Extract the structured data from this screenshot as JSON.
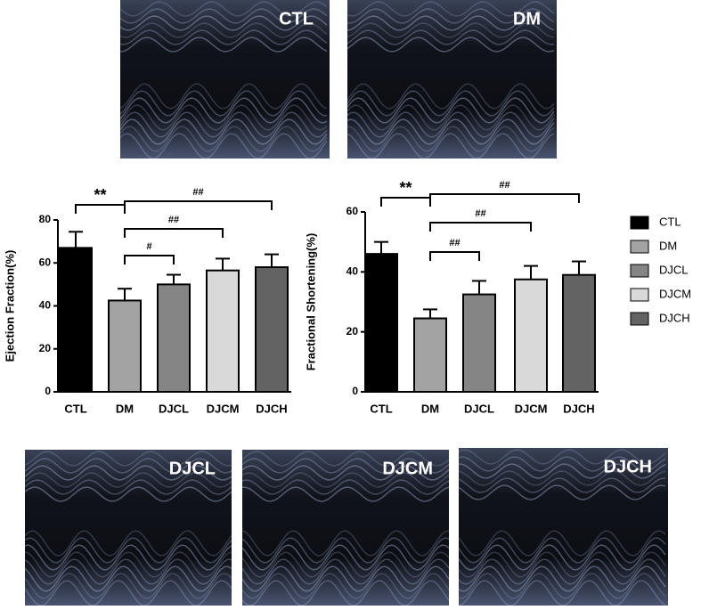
{
  "images": {
    "labels": [
      "CTL",
      "DM",
      "DJCL",
      "DJCM",
      "DJCH"
    ]
  },
  "chart_data": [
    {
      "type": "bar",
      "y_label": "Ejection Fraction(%)",
      "categories": [
        "CTL",
        "DM",
        "DJCL",
        "DJCM",
        "DJCH"
      ],
      "values": [
        67,
        42.5,
        50,
        56.5,
        58
      ],
      "errors": [
        7.5,
        5.5,
        4.5,
        5.5,
        6
      ],
      "colors": [
        "#000000",
        "#a3a3a3",
        "#858585",
        "#d9d9d9",
        "#636363"
      ],
      "ylim": [
        0,
        80
      ],
      "yticks": [
        0,
        20,
        40,
        60,
        80
      ],
      "annotations": [
        "**",
        "##",
        "##",
        "#"
      ]
    },
    {
      "type": "bar",
      "y_label": "Fractional Shortening(%)",
      "categories": [
        "CTL",
        "DM",
        "DJCL",
        "DJCM",
        "DJCH"
      ],
      "values": [
        46,
        24.5,
        32.5,
        37.5,
        39
      ],
      "errors": [
        4,
        3,
        4.5,
        4.5,
        4.5
      ],
      "colors": [
        "#000000",
        "#a3a3a3",
        "#858585",
        "#d9d9d9",
        "#636363"
      ],
      "ylim": [
        0,
        60
      ],
      "yticks": [
        0,
        20,
        40,
        60
      ],
      "annotations": [
        "**",
        "##",
        "##",
        "##"
      ],
      "legend": "right"
    }
  ]
}
